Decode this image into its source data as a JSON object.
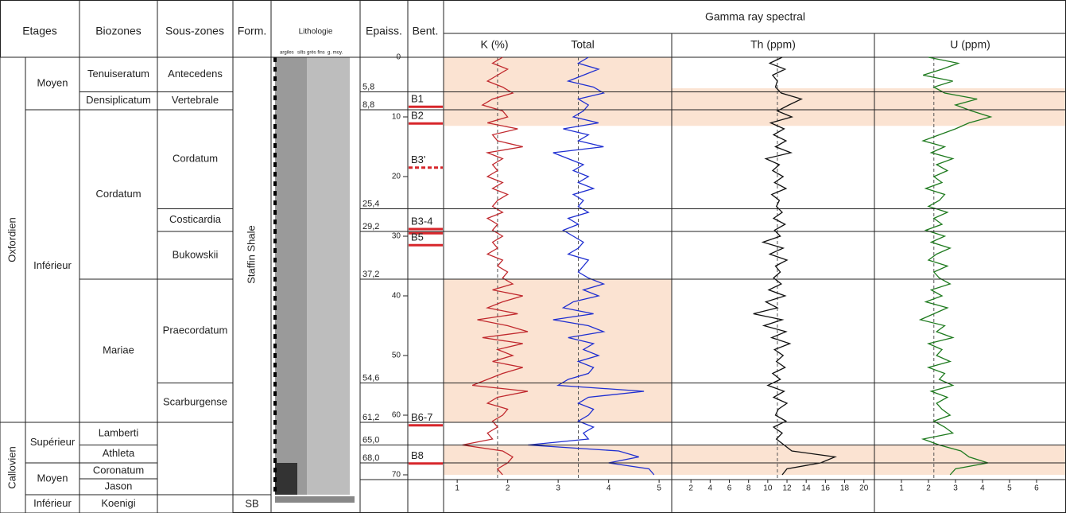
{
  "headers": {
    "etages": "Etages",
    "biozones": "Biozones",
    "sous_zones": "Sous-zones",
    "form": "Form.",
    "lithologie": "Lithologie",
    "litho_scale": [
      "argiles",
      "silts",
      "grès fins",
      "g. moy."
    ],
    "epaiss": "Epaiss.",
    "bent": "Bent."
  },
  "stages": [
    "Oxfordien",
    "Callovien"
  ],
  "substages": [
    "Moyen",
    "Inférieur",
    "Supérieur",
    "Moyen",
    "Inférieur"
  ],
  "biozones": [
    "Tenuiseratum",
    "Densiplicatum",
    "Cordatum",
    "Mariae",
    "Lamberti",
    "Athleta",
    "Coronatum",
    "Jason",
    "Koenigi"
  ],
  "subzones": [
    "Antecedens",
    "Vertebrale",
    "Cordatum",
    "Costicardia",
    "Bukowskii",
    "Praecordatum",
    "Scarburgense"
  ],
  "formations": [
    "Staffin Shale",
    "SB"
  ],
  "title": "Gamma ray spectral",
  "ylim": [
    0,
    70.8
  ],
  "yticks": [
    0,
    10,
    20,
    30,
    40,
    50,
    60,
    70
  ],
  "boundaries": [
    {
      "value": 5.8,
      "label": "5,8"
    },
    {
      "value": 8.8,
      "label": "8,8"
    },
    {
      "value": 25.4,
      "label": "25,4"
    },
    {
      "value": 29.2,
      "label": "29,2"
    },
    {
      "value": 37.2,
      "label": "37,2"
    },
    {
      "value": 54.6,
      "label": "54,6"
    },
    {
      "value": 61.2,
      "label": "61,2"
    },
    {
      "value": 65.0,
      "label": "65,0"
    },
    {
      "value": 68.0,
      "label": "68,0"
    }
  ],
  "bentonites": [
    {
      "label": "B1",
      "depths": [
        8.3
      ]
    },
    {
      "label": "B2",
      "depths": [
        11.1
      ]
    },
    {
      "label": "B3'",
      "depths": [
        18.5
      ],
      "dashed": true
    },
    {
      "label": "B3-4",
      "depths": [
        28.8,
        29.5
      ]
    },
    {
      "label": "B5",
      "depths": [
        31.5
      ]
    },
    {
      "label": "B6-7",
      "depths": [
        61.7
      ]
    },
    {
      "label": "B8",
      "depths": [
        68.1
      ]
    }
  ],
  "bentonite_color": "#d7262b",
  "highlight_color": "#fbe3d2",
  "depth": [
    0,
    1,
    2,
    3,
    4,
    5,
    6,
    7,
    8,
    9,
    10,
    11,
    12,
    13,
    14,
    15,
    16,
    17,
    18,
    19,
    20,
    21,
    22,
    23,
    24,
    25,
    26,
    27,
    28,
    29,
    30,
    31,
    32,
    33,
    34,
    35,
    36,
    37,
    38,
    39,
    40,
    41,
    42,
    43,
    44,
    45,
    46,
    47,
    48,
    49,
    50,
    51,
    52,
    53,
    54,
    55,
    56,
    57,
    58,
    59,
    60,
    61,
    62,
    63,
    64,
    65,
    66,
    67,
    68,
    69,
    70
  ],
  "chart_data": [
    {
      "type": "line",
      "xlim": [
        0.73,
        5.25
      ],
      "xticks": [
        1,
        2,
        3,
        4,
        5
      ],
      "highlights": [
        [
          0,
          11.5
        ],
        [
          37.2,
          61.2
        ],
        [
          65,
          70
        ]
      ],
      "series": [
        {
          "name": "K (%)",
          "color": "#c0282d",
          "reference": 1.8,
          "values": [
            1.9,
            1.7,
            2.0,
            1.8,
            1.6,
            1.9,
            2.1,
            1.7,
            1.5,
            1.9,
            2.0,
            1.6,
            2.2,
            1.7,
            1.8,
            2.3,
            1.6,
            1.9,
            1.7,
            1.8,
            1.6,
            1.9,
            1.7,
            2.0,
            1.8,
            1.7,
            1.9,
            1.6,
            1.8,
            1.7,
            1.9,
            1.7,
            1.8,
            1.6,
            1.9,
            1.8,
            2.0,
            1.9,
            2.1,
            1.7,
            2.3,
            1.9,
            1.6,
            2.2,
            1.4,
            2.0,
            2.4,
            1.5,
            2.3,
            1.8,
            2.1,
            1.7,
            2.3,
            1.9,
            1.6,
            1.3,
            2.4,
            1.8,
            1.6,
            2.0,
            1.9,
            1.7,
            1.8,
            1.6,
            1.7,
            1.1,
            1.9,
            2.1,
            2.0,
            1.8,
            1.9
          ]
        },
        {
          "name": "Total",
          "color": "#1f2fd1",
          "reference": 3.4,
          "values": [
            3.6,
            3.4,
            3.8,
            3.5,
            3.2,
            3.7,
            3.9,
            3.4,
            3.6,
            3.5,
            3.3,
            3.8,
            3.1,
            3.6,
            3.4,
            3.9,
            2.9,
            3.2,
            3.5,
            3.3,
            3.6,
            3.4,
            3.7,
            3.3,
            3.5,
            3.4,
            3.6,
            3.2,
            3.4,
            3.1,
            3.3,
            3.5,
            3.4,
            3.2,
            3.6,
            3.5,
            3.4,
            3.6,
            3.9,
            3.5,
            3.8,
            3.3,
            3.1,
            3.7,
            2.9,
            3.6,
            3.9,
            3.2,
            3.7,
            3.5,
            3.8,
            3.4,
            3.7,
            3.6,
            3.2,
            3.0,
            4.7,
            3.6,
            3.4,
            3.7,
            3.6,
            3.4,
            3.7,
            3.5,
            3.6,
            2.4,
            4.2,
            4.6,
            4.0,
            4.8,
            4.9
          ]
        }
      ]
    },
    {
      "type": "line",
      "xlim": [
        0,
        21.1
      ],
      "xticks": [
        2,
        4,
        6,
        8,
        10,
        12,
        14,
        16,
        18,
        20
      ],
      "highlights": [
        [
          5.2,
          11.5
        ],
        [
          65,
          70
        ]
      ],
      "series": [
        {
          "name": "Th (ppm)",
          "color": "#111111",
          "reference": 11,
          "values": [
            11.5,
            10.2,
            11.8,
            10.5,
            11.0,
            10.8,
            11.4,
            13.5,
            12.2,
            11.0,
            12.5,
            10.3,
            11.7,
            10.6,
            11.9,
            10.8,
            12.4,
            9.8,
            11.2,
            10.5,
            11.6,
            10.7,
            11.9,
            10.4,
            11.2,
            10.9,
            11.5,
            10.6,
            11.8,
            10.7,
            11.3,
            9.5,
            11.6,
            10.2,
            12.0,
            10.8,
            11.3,
            10.6,
            11.4,
            10.1,
            11.8,
            9.8,
            11.0,
            8.5,
            11.5,
            9.6,
            11.9,
            10.4,
            12.3,
            10.7,
            11.6,
            10.9,
            11.8,
            10.5,
            11.3,
            10.0,
            11.7,
            10.6,
            12.0,
            11.1,
            10.8,
            11.9,
            10.6,
            11.5,
            10.9,
            11.7,
            12.5,
            17.0,
            15.5,
            12.0,
            11.5
          ]
        }
      ]
    },
    {
      "type": "line",
      "xlim": [
        0,
        7.09
      ],
      "xticks": [
        1,
        2,
        3,
        4,
        5,
        6
      ],
      "highlights": [
        [
          5.2,
          11.5
        ],
        [
          65,
          70
        ]
      ],
      "series": [
        {
          "name": "U (ppm)",
          "color": "#1e7a1e",
          "reference": 2.2,
          "values": [
            2.0,
            3.1,
            2.5,
            1.8,
            2.9,
            2.2,
            2.6,
            3.8,
            3.0,
            3.6,
            4.3,
            3.5,
            3.0,
            2.4,
            1.8,
            2.6,
            2.1,
            2.9,
            2.3,
            2.7,
            2.2,
            2.5,
            1.9,
            2.6,
            2.4,
            2.0,
            2.7,
            2.2,
            2.5,
            1.9,
            2.6,
            2.1,
            2.8,
            2.3,
            2.0,
            2.7,
            2.2,
            2.4,
            2.8,
            2.1,
            2.5,
            1.9,
            2.7,
            2.2,
            1.7,
            2.6,
            2.3,
            2.9,
            2.0,
            2.5,
            2.3,
            2.8,
            2.0,
            2.6,
            2.4,
            2.9,
            2.1,
            2.7,
            2.3,
            2.5,
            2.8,
            2.2,
            2.6,
            2.9,
            1.8,
            2.4,
            3.2,
            3.5,
            4.2,
            3.0,
            2.8
          ]
        }
      ]
    }
  ]
}
